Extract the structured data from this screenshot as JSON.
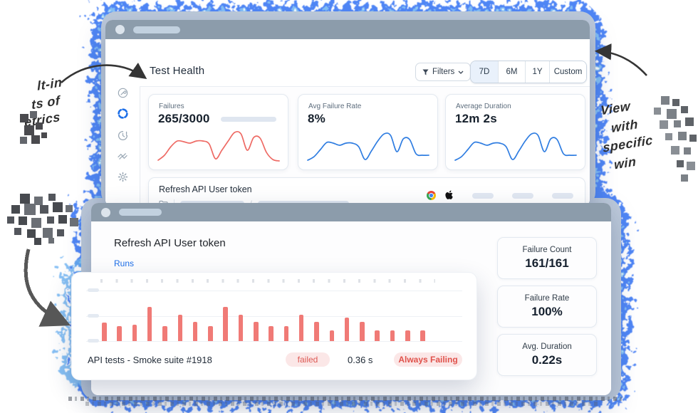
{
  "colors": {
    "accent_blue": "#1d6fe8",
    "glow_blue": "#3c79f5",
    "glow_cyan": "#8fd4f4",
    "titlebar_gray": "#8c9cab",
    "bar_red": "#f07a76",
    "line_red": "#ee6a64",
    "line_blue": "#2f7de1",
    "badge_bg": "#fbe7e7",
    "badge_text": "#dd5a55",
    "slate_base": "#bcc9da"
  },
  "annotations": {
    "left_note_lines": [
      "lt-in",
      "ts of",
      "etrics"
    ],
    "right_note_lines": [
      "View",
      "with",
      "specific",
      "win"
    ]
  },
  "top_window": {
    "page_title": "Test Health",
    "filters_label": "Filters",
    "ranges": [
      "7D",
      "6M",
      "1Y",
      "Custom"
    ],
    "selected_range": "7D",
    "sidebar_icons": [
      {
        "name": "wrench-icon",
        "active": false
      },
      {
        "name": "sync-icon",
        "active": true
      },
      {
        "name": "history-alert-icon",
        "active": false
      },
      {
        "name": "trend-icon",
        "active": false
      },
      {
        "name": "gear-icon",
        "active": false
      }
    ],
    "metric_cards": [
      {
        "label": "Failures",
        "value": "265/3000"
      },
      {
        "label": "Avg Failure Rate",
        "value": "8%"
      },
      {
        "label": "Average Duration",
        "value": "12m 2s"
      }
    ],
    "row_card": {
      "title": "Refresh API User token",
      "path_separator": "/",
      "browser_icons": [
        "chrome-icon",
        "apple-icon"
      ]
    }
  },
  "bottom_window": {
    "title": "Refresh API User token",
    "tab_label": "Runs",
    "stats": [
      {
        "label": "Failure Count",
        "value": "161/161"
      },
      {
        "label": "Failure Rate",
        "value": "100%"
      },
      {
        "label": "Avg. Duration",
        "value": "0.22s"
      }
    ],
    "run_footer": {
      "name": "API tests - Smoke suite #1918",
      "status_badge": "failed",
      "duration": "0.36 s",
      "label_badge": "Always Failing"
    }
  },
  "chart_data": [
    {
      "type": "line",
      "name": "failures-sparkline",
      "color": "#ee6a64",
      "values": [
        3,
        10,
        22,
        30,
        29,
        27,
        30,
        30,
        26,
        5,
        17,
        30,
        42,
        40,
        17,
        35,
        34,
        14,
        4,
        2
      ]
    },
    {
      "type": "line",
      "name": "avg-failure-rate-sparkline",
      "color": "#2f7de1",
      "values": [
        3,
        8,
        18,
        28,
        27,
        24,
        27,
        27,
        22,
        4,
        16,
        30,
        40,
        38,
        15,
        33,
        32,
        12,
        10,
        10
      ]
    },
    {
      "type": "line",
      "name": "average-duration-sparkline",
      "color": "#2f7de1",
      "values": [
        3,
        8,
        18,
        28,
        27,
        24,
        27,
        27,
        22,
        4,
        16,
        30,
        40,
        38,
        15,
        33,
        32,
        12,
        10,
        10
      ]
    },
    {
      "type": "bar",
      "name": "runs-bar-chart",
      "color": "#f07a76",
      "values": [
        26,
        21,
        23,
        48,
        21,
        37,
        27,
        21,
        48,
        37,
        27,
        21,
        21,
        37,
        27,
        15,
        33,
        27,
        15,
        15,
        15,
        15
      ]
    }
  ]
}
